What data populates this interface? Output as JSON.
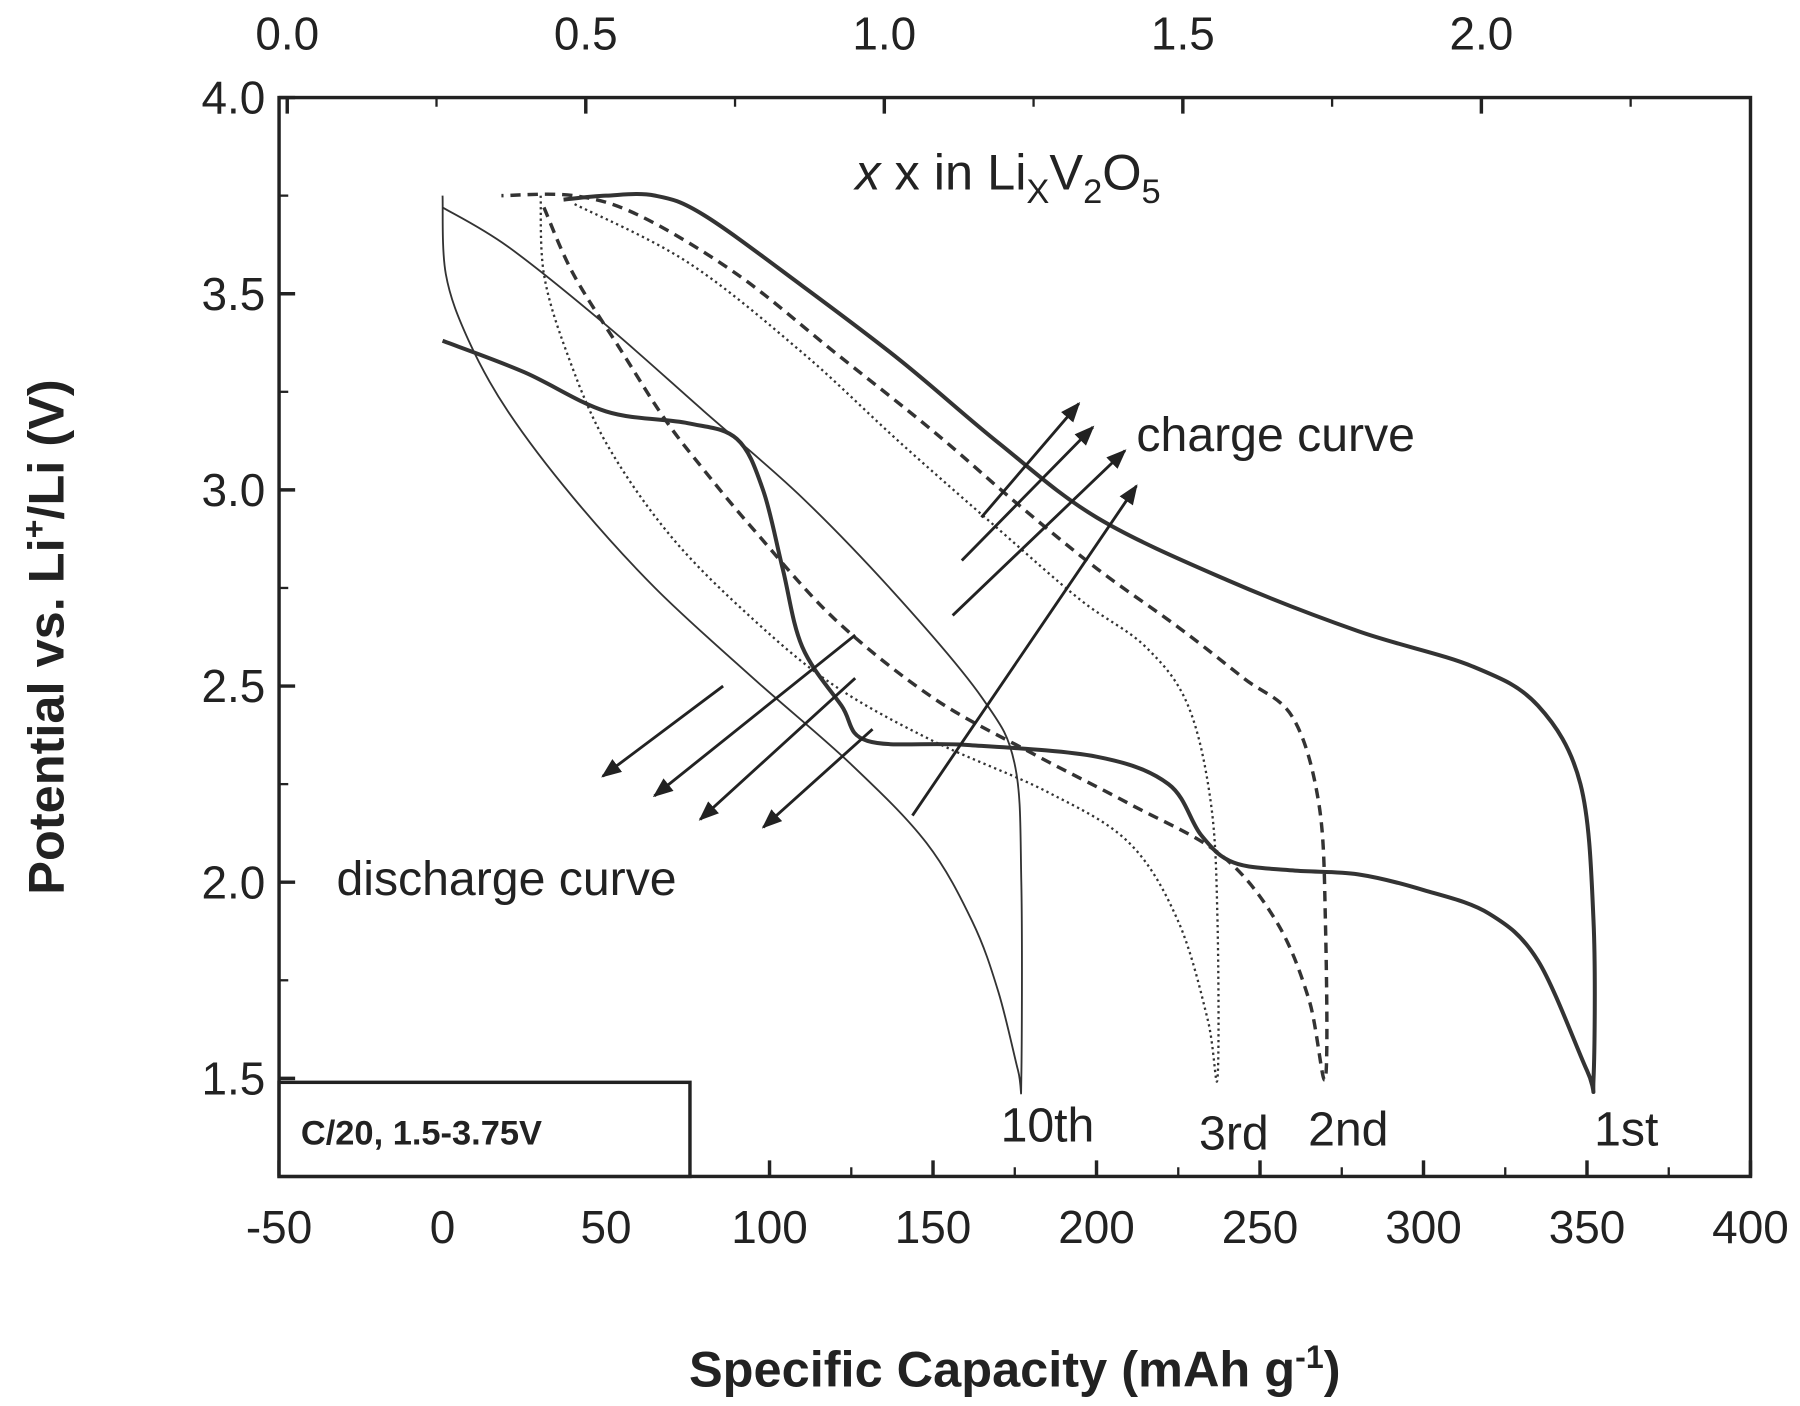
{
  "chart_data": {
    "type": "line",
    "xlabel": "Specific Capacity (mAh g",
    "xlabel_sup": "-1",
    "xlabel_end": ")",
    "ylabel": "Potential vs. Li",
    "ylabel_sup": "+",
    "ylabel_end": "/Li (V)",
    "xlim": [
      -50,
      400
    ],
    "ylim": [
      1.25,
      4.0
    ],
    "xticks": [
      -50,
      0,
      50,
      100,
      150,
      200,
      250,
      300,
      350,
      400
    ],
    "yticks": [
      1.5,
      2.0,
      2.5,
      3.0,
      3.5,
      4.0
    ],
    "top_axis": {
      "label_prefix": "x in Li",
      "label_sub1": "X",
      "label_mid": "V",
      "label_sub2": "2",
      "label_o": "O",
      "label_sub3": "5",
      "ticks": [
        "0.0",
        "0.5",
        "1.0",
        "1.5",
        "2.0"
      ],
      "capacity_at_zero": -47.5,
      "capacity_per_unit": 182.6
    },
    "inset_label": "C/20, 1.5-3.75V",
    "annotations": {
      "charge": "charge curve",
      "discharge": "discharge curve"
    },
    "series": [
      {
        "name": "1st",
        "style": "thick-solid",
        "label_x": 362,
        "label_y": 1.37,
        "points": [
          [
            0,
            3.38
          ],
          [
            25,
            3.3
          ],
          [
            50,
            3.2
          ],
          [
            75,
            3.17
          ],
          [
            90,
            3.13
          ],
          [
            98,
            3.0
          ],
          [
            104,
            2.8
          ],
          [
            110,
            2.6
          ],
          [
            122,
            2.45
          ],
          [
            130,
            2.36
          ],
          [
            160,
            2.35
          ],
          [
            200,
            2.32
          ],
          [
            222,
            2.25
          ],
          [
            232,
            2.12
          ],
          [
            242,
            2.05
          ],
          [
            260,
            2.03
          ],
          [
            280,
            2.02
          ],
          [
            300,
            1.98
          ],
          [
            320,
            1.92
          ],
          [
            335,
            1.8
          ],
          [
            350,
            1.52
          ],
          [
            352,
            1.5
          ],
          [
            352,
            1.9
          ],
          [
            348,
            2.25
          ],
          [
            335,
            2.45
          ],
          [
            315,
            2.55
          ],
          [
            280,
            2.64
          ],
          [
            240,
            2.77
          ],
          [
            200,
            2.93
          ],
          [
            170,
            3.12
          ],
          [
            140,
            3.33
          ],
          [
            110,
            3.52
          ],
          [
            80,
            3.7
          ],
          [
            65,
            3.75
          ],
          [
            50,
            3.75
          ],
          [
            37,
            3.74
          ]
        ]
      },
      {
        "name": "2nd",
        "style": "thick-dashed",
        "label_x": 277,
        "label_y": 1.37,
        "points": [
          [
            31,
            3.72
          ],
          [
            40,
            3.55
          ],
          [
            55,
            3.35
          ],
          [
            68,
            3.18
          ],
          [
            80,
            3.05
          ],
          [
            95,
            2.9
          ],
          [
            120,
            2.67
          ],
          [
            150,
            2.47
          ],
          [
            180,
            2.33
          ],
          [
            210,
            2.2
          ],
          [
            238,
            2.07
          ],
          [
            255,
            1.9
          ],
          [
            265,
            1.7
          ],
          [
            270,
            1.5
          ],
          [
            270,
            1.9
          ],
          [
            268,
            2.2
          ],
          [
            260,
            2.42
          ],
          [
            245,
            2.52
          ],
          [
            225,
            2.65
          ],
          [
            200,
            2.8
          ],
          [
            175,
            2.97
          ],
          [
            150,
            3.15
          ],
          [
            120,
            3.35
          ],
          [
            90,
            3.55
          ],
          [
            60,
            3.7
          ],
          [
            40,
            3.75
          ],
          [
            18,
            3.75
          ]
        ]
      },
      {
        "name": "3rd",
        "style": "thin-dotted",
        "label_x": 242,
        "label_y": 1.36,
        "points": [
          [
            30,
            3.75
          ],
          [
            31,
            3.55
          ],
          [
            38,
            3.35
          ],
          [
            50,
            3.12
          ],
          [
            70,
            2.88
          ],
          [
            95,
            2.67
          ],
          [
            120,
            2.5
          ],
          [
            150,
            2.36
          ],
          [
            185,
            2.23
          ],
          [
            210,
            2.1
          ],
          [
            225,
            1.9
          ],
          [
            234,
            1.65
          ],
          [
            237,
            1.5
          ],
          [
            237,
            1.9
          ],
          [
            235,
            2.2
          ],
          [
            228,
            2.45
          ],
          [
            215,
            2.6
          ],
          [
            195,
            2.72
          ],
          [
            170,
            2.9
          ],
          [
            140,
            3.12
          ],
          [
            110,
            3.35
          ],
          [
            75,
            3.58
          ],
          [
            40,
            3.73
          ]
        ]
      },
      {
        "name": "10th",
        "style": "thin-solid",
        "label_x": 185,
        "label_y": 1.38,
        "points": [
          [
            0,
            3.75
          ],
          [
            1,
            3.55
          ],
          [
            8,
            3.38
          ],
          [
            20,
            3.2
          ],
          [
            40,
            2.98
          ],
          [
            65,
            2.75
          ],
          [
            95,
            2.52
          ],
          [
            125,
            2.3
          ],
          [
            148,
            2.1
          ],
          [
            162,
            1.9
          ],
          [
            170,
            1.72
          ],
          [
            176,
            1.52
          ],
          [
            177,
            1.5
          ],
          [
            177,
            2.0
          ],
          [
            175,
            2.3
          ],
          [
            165,
            2.47
          ],
          [
            140,
            2.72
          ],
          [
            110,
            2.98
          ],
          [
            80,
            3.2
          ],
          [
            50,
            3.42
          ],
          [
            20,
            3.62
          ],
          [
            0,
            3.72
          ]
        ]
      }
    ],
    "arrows": [
      {
        "kind": "charge",
        "from": [
          164.8,
          2.93
        ],
        "to": [
          194.6,
          3.22
        ]
      },
      {
        "kind": "charge",
        "from": [
          158.8,
          2.82
        ],
        "to": [
          198.9,
          3.16
        ]
      },
      {
        "kind": "charge",
        "from": [
          156.0,
          2.68
        ],
        "to": [
          208.7,
          3.1
        ]
      },
      {
        "kind": "charge",
        "from": [
          143.7,
          2.17
        ],
        "to": [
          212.2,
          3.01
        ]
      },
      {
        "kind": "discharge",
        "from": [
          85.8,
          2.5
        ],
        "to": [
          49.0,
          2.27
        ]
      },
      {
        "kind": "discharge",
        "from": [
          126.2,
          2.63
        ],
        "to": [
          64.8,
          2.22
        ]
      },
      {
        "kind": "discharge",
        "from": [
          126.2,
          2.52
        ],
        "to": [
          78.8,
          2.16
        ]
      },
      {
        "kind": "discharge",
        "from": [
          131.5,
          2.39
        ],
        "to": [
          98.1,
          2.14
        ]
      }
    ]
  }
}
